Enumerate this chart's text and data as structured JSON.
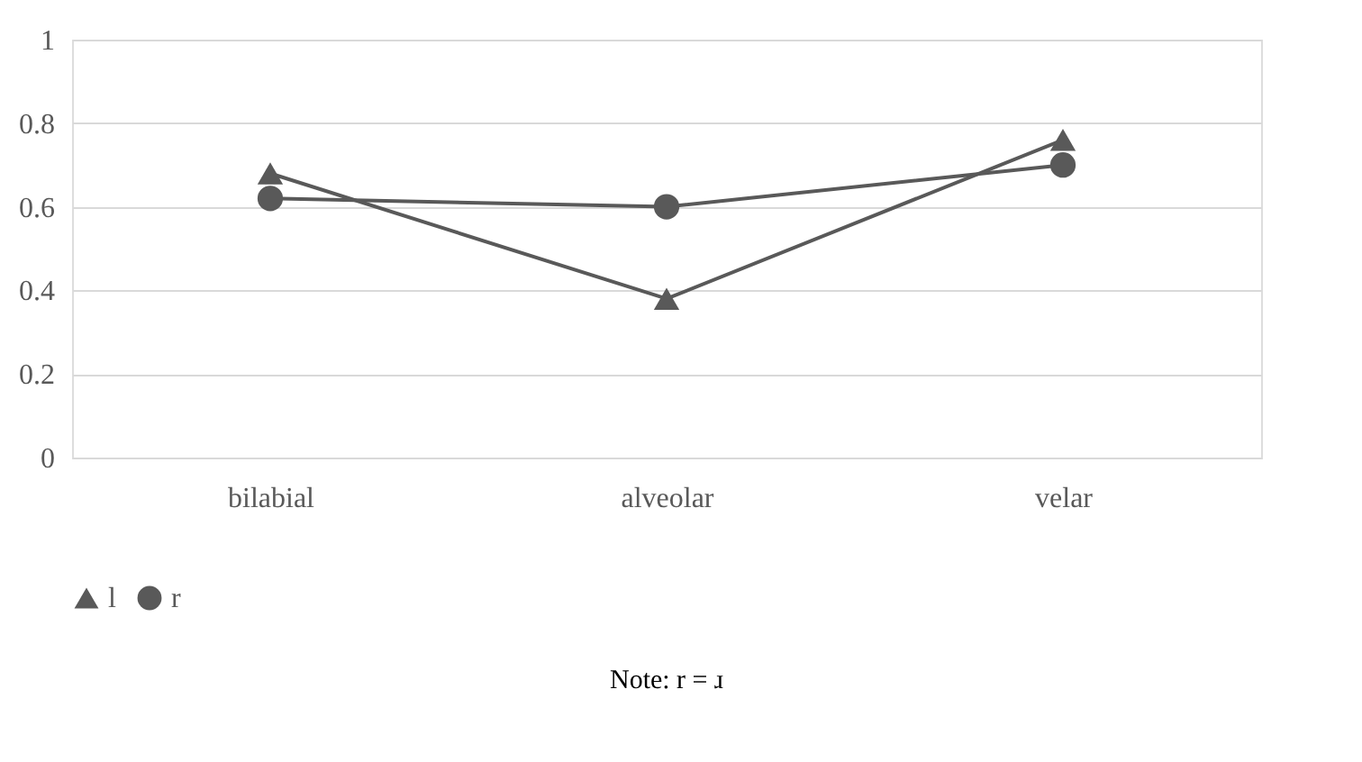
{
  "chart_data": {
    "type": "line",
    "categories": [
      "bilabial",
      "alveolar",
      "velar"
    ],
    "series": [
      {
        "name": "l",
        "color": "#595959",
        "marker": "triangle",
        "values": [
          0.68,
          0.38,
          0.76
        ]
      },
      {
        "name": "r",
        "color": "#595959",
        "marker": "circle",
        "values": [
          0.62,
          0.6,
          0.7
        ]
      }
    ],
    "ylim": [
      0,
      1
    ],
    "yticks": [
      0,
      0.2,
      0.4,
      0.6,
      0.8,
      1
    ],
    "grid": "y",
    "legend": "bottom",
    "line_style": "solid",
    "annotations": [
      "Note: r = ɹ"
    ]
  }
}
